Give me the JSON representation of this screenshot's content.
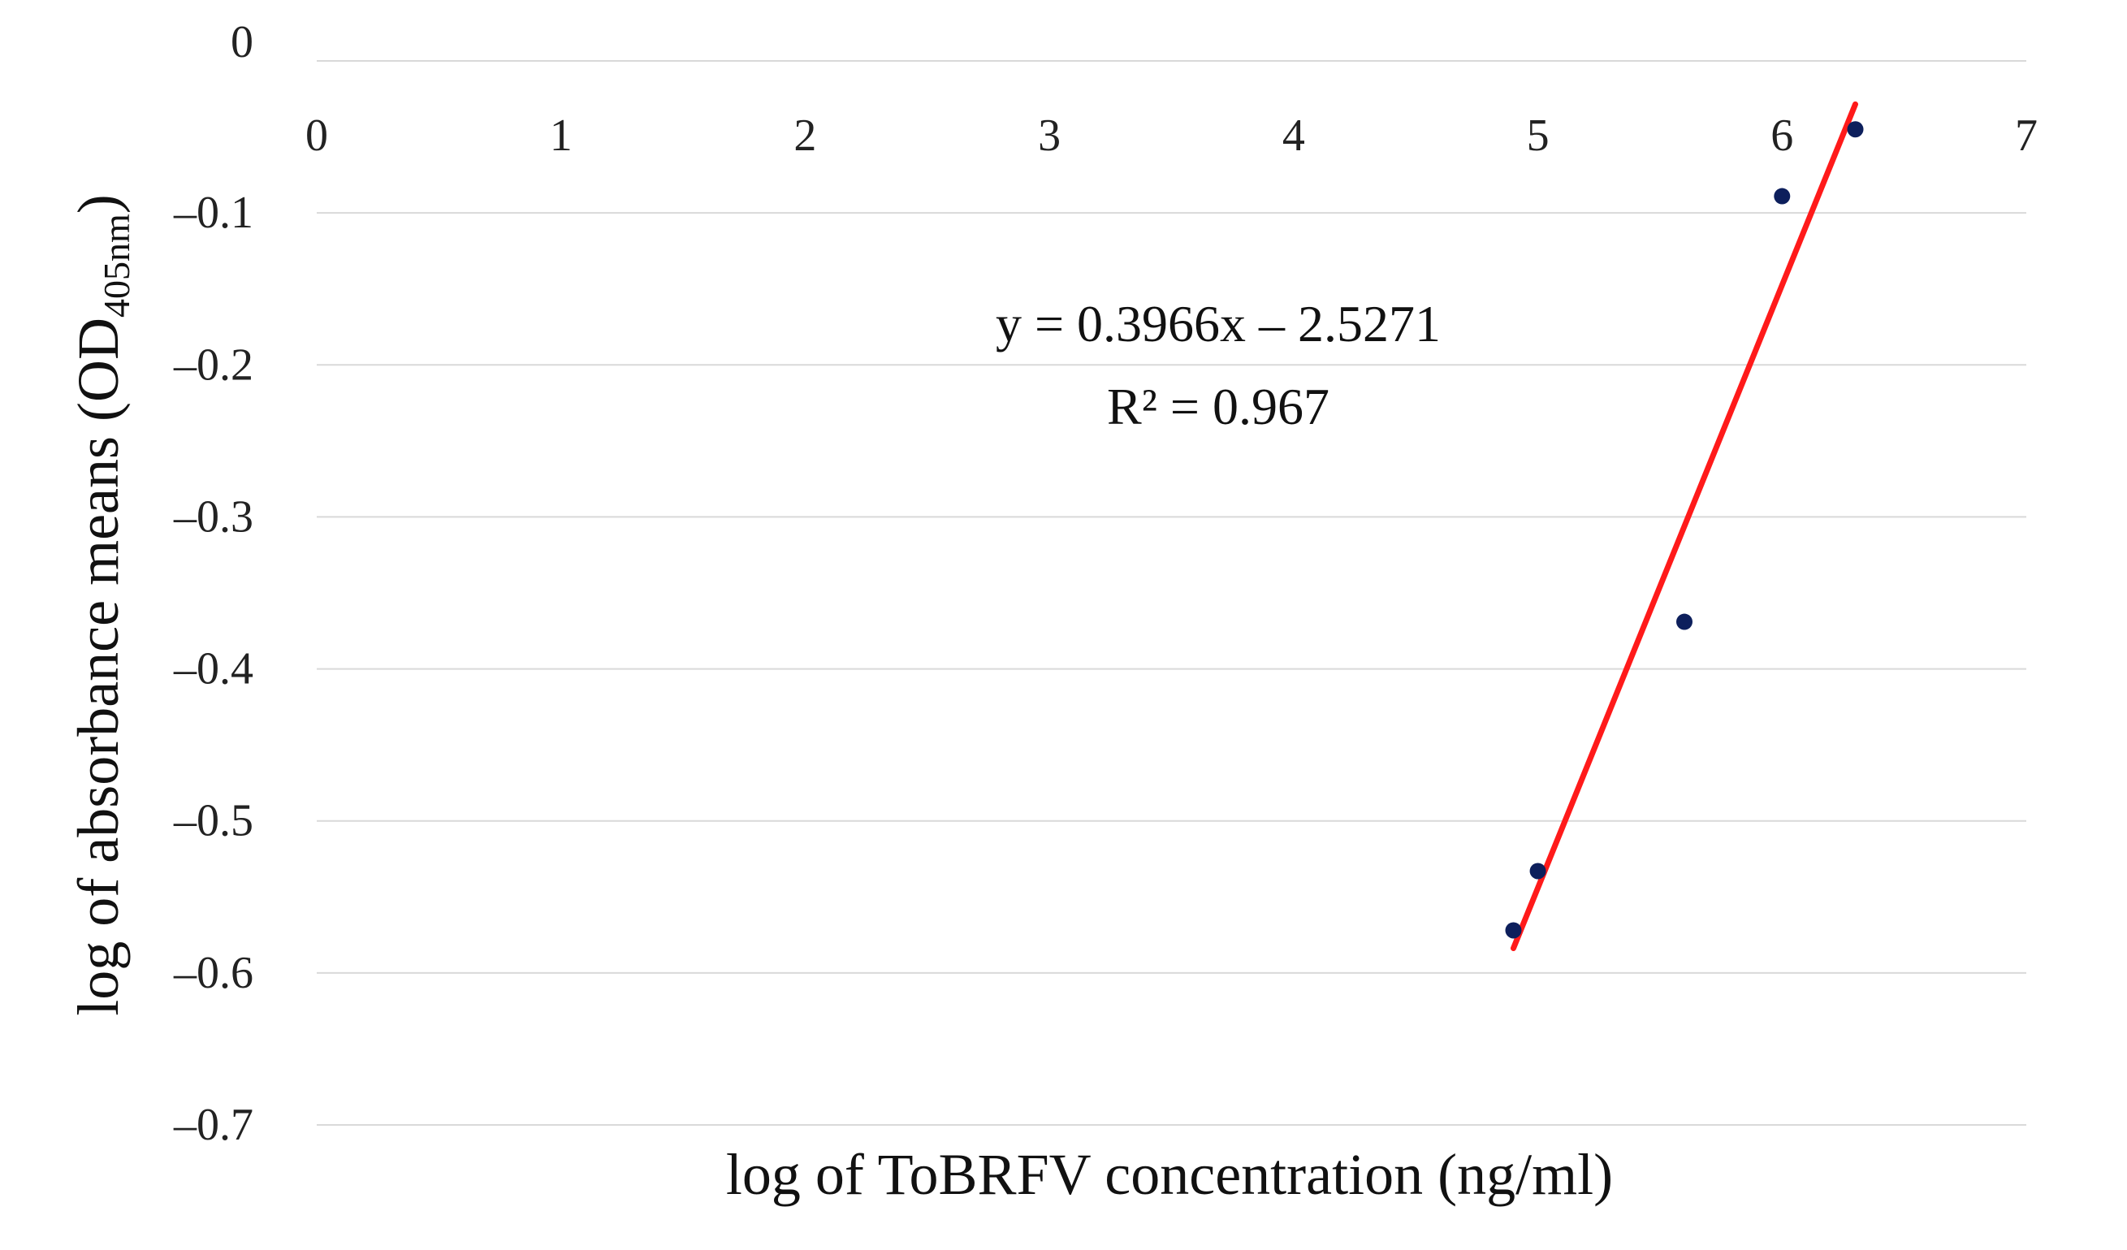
{
  "chart_data": {
    "type": "scatter",
    "xlabel": "log of ToBRFV concentration (ng/ml)",
    "ylabel_main": "log of absorbance means (OD",
    "ylabel_sub": "405nm",
    "ylabel_close": ")",
    "xlim": [
      0,
      7
    ],
    "ylim": [
      -0.7,
      0
    ],
    "x_ticks": [
      "0",
      "1",
      "2",
      "3",
      "4",
      "5",
      "6",
      "7"
    ],
    "y_ticks": [
      "0",
      "–0.1",
      "–0.2",
      "–0.3",
      "–0.4",
      "–0.5",
      "–0.6",
      "–0.7"
    ],
    "grid": "horizontal",
    "series": [
      {
        "color": "#0d1f5c",
        "points": [
          {
            "x": 4.9,
            "y": -0.572
          },
          {
            "x": 5.0,
            "y": -0.533
          },
          {
            "x": 5.6,
            "y": -0.369
          },
          {
            "x": 6.0,
            "y": -0.089
          },
          {
            "x": 6.3,
            "y": -0.045
          }
        ]
      }
    ],
    "trendline": {
      "color": "#ff1a1a",
      "slope": 0.3966,
      "intercept": -2.5271,
      "x_range": [
        4.9,
        6.3
      ]
    },
    "equation": "y = 0.3966x – 2.5271",
    "r_squared": "R² = 0.967"
  }
}
